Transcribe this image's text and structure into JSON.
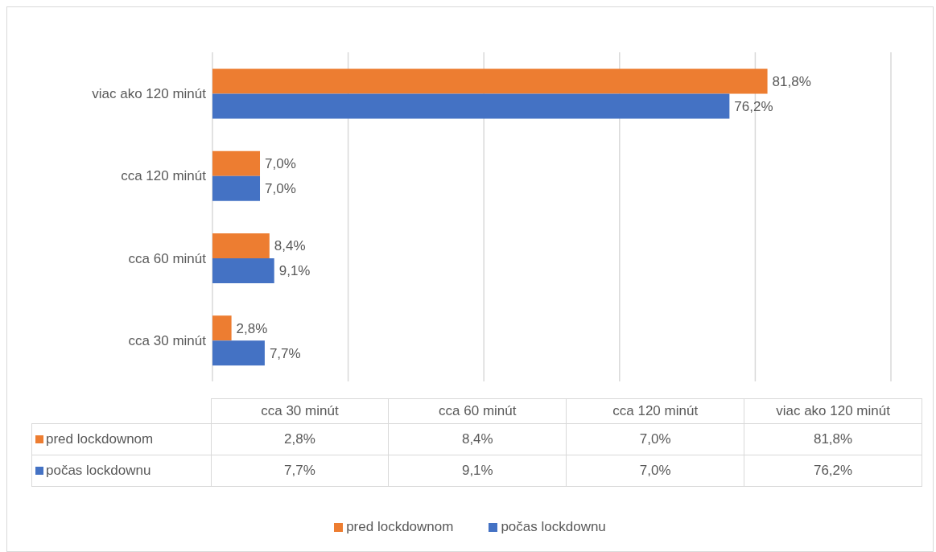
{
  "chart_data": {
    "type": "bar",
    "orientation": "horizontal",
    "categories": [
      "viac ako 120 minút",
      "cca 120 minút",
      "cca 60 minút",
      "cca 30 minút"
    ],
    "series": [
      {
        "name": "pred lockdownom",
        "color": "#ed7d31",
        "values": [
          81.8,
          7.0,
          8.4,
          2.8
        ],
        "value_labels": [
          "81,8%",
          "7,0%",
          "8,4%",
          "2,8%"
        ]
      },
      {
        "name": "počas lockdownu",
        "color": "#4472c4",
        "values": [
          76.2,
          7.0,
          9.1,
          7.7
        ],
        "value_labels": [
          "76,2%",
          "7,0%",
          "9,1%",
          "7,7%"
        ]
      }
    ],
    "xlim": [
      0,
      100
    ],
    "xticks": [
      {
        "value": 0,
        "label": null
      },
      {
        "value": 20,
        "label": null
      },
      {
        "value": 40,
        "label": null
      },
      {
        "value": 60,
        "label": null
      },
      {
        "value": 80,
        "label": null
      },
      {
        "value": 100,
        "label": null
      }
    ],
    "grid": "x",
    "legend": "bottom",
    "tick_labels": "y"
  }
}
